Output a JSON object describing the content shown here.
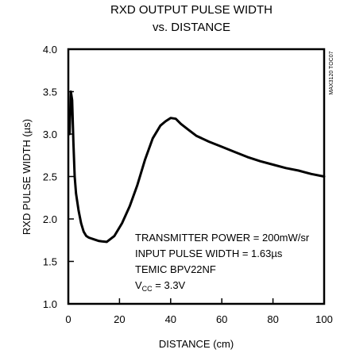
{
  "chart_data": {
    "type": "line",
    "title_line1": "RXD OUTPUT PULSE WIDTH",
    "title_line2": "vs.  DISTANCE",
    "xlabel": "DISTANCE (cm)",
    "ylabel": "RXD PULSE WIDTH (µs)",
    "figure_code": "MAX3120 TOC07",
    "xlim": [
      0,
      100
    ],
    "ylim": [
      1.0,
      4.0
    ],
    "x_ticks": [
      0,
      20,
      40,
      60,
      80,
      100
    ],
    "x_tick_labels": [
      "0",
      "20",
      "40",
      "60",
      "80",
      "100"
    ],
    "y_ticks": [
      1.0,
      1.5,
      2.0,
      2.5,
      3.0,
      3.5,
      4.0
    ],
    "y_tick_labels": [
      "1.0",
      "1.5",
      "2.0",
      "2.5",
      "3.0",
      "3.5",
      "4.0"
    ],
    "grid": false,
    "annotations": {
      "line1": "TRANSMITTER POWER = 200mW/sr",
      "line2": "INPUT PULSE WIDTH = 1.63µs",
      "line3": "TEMIC BPV22NF",
      "line4_main": "V",
      "line4_sub": "CC",
      "line4_rest": " = 3.3V"
    },
    "series": [
      {
        "x": [
          0.5,
          1.0,
          1.5,
          2.0,
          2.5,
          3.0,
          4.0,
          5.0,
          6.0,
          7.0,
          8.0,
          10.0,
          12.0,
          15.0,
          18.0,
          21.0,
          24.0,
          27.0,
          30.0,
          33.0,
          36.0,
          38.0,
          40.0,
          42.0,
          44.0,
          47.0,
          50.0,
          55.0,
          60.0,
          65.0,
          70.0,
          75.0,
          80.0,
          85.0,
          90.0,
          95.0,
          100.0
        ],
        "y": [
          3.0,
          3.5,
          3.4,
          2.9,
          2.5,
          2.3,
          2.1,
          1.95,
          1.85,
          1.8,
          1.78,
          1.76,
          1.74,
          1.73,
          1.8,
          1.95,
          2.15,
          2.4,
          2.7,
          2.95,
          3.1,
          3.15,
          3.19,
          3.18,
          3.12,
          3.05,
          2.98,
          2.91,
          2.85,
          2.79,
          2.73,
          2.68,
          2.64,
          2.6,
          2.57,
          2.53,
          2.5
        ]
      }
    ]
  }
}
